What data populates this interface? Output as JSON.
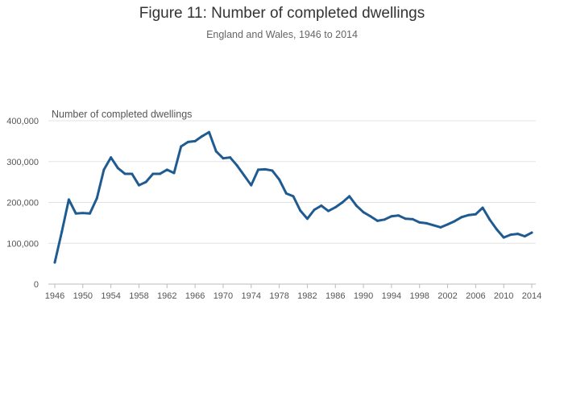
{
  "chart_data": {
    "type": "line",
    "title": "Figure 11: Number of completed dwellings",
    "subtitle": "England and Wales, 1946 to 2014",
    "xlabel": "",
    "ylabel": "Number of completed dwellings",
    "xlim": [
      1946,
      2014
    ],
    "ylim": [
      0,
      400000
    ],
    "x_ticks": [
      "1946",
      "1950",
      "1954",
      "1958",
      "1962",
      "1966",
      "1970",
      "1974",
      "1978",
      "1982",
      "1986",
      "1990",
      "1994",
      "1998",
      "2002",
      "2006",
      "2010",
      "2014"
    ],
    "y_ticks": [
      "0",
      "100,000",
      "200,000",
      "300,000",
      "400,000"
    ],
    "grid": true,
    "line_color": "#1f5b91",
    "series": [
      {
        "x": [
          1946,
          1947,
          1948,
          1949,
          1950,
          1951,
          1952,
          1953,
          1954,
          1955,
          1956,
          1957,
          1958,
          1959,
          1960,
          1961,
          1962,
          1963,
          1964,
          1965,
          1966,
          1967,
          1968,
          1969,
          1970,
          1971,
          1972,
          1973,
          1974,
          1975,
          1976,
          1977,
          1978,
          1979,
          1980,
          1981,
          1982,
          1983,
          1984,
          1985,
          1986,
          1987,
          1988,
          1989,
          1990,
          1991,
          1992,
          1993,
          1994,
          1995,
          1996,
          1997,
          1998,
          1999,
          2000,
          2001,
          2002,
          2003,
          2004,
          2005,
          2006,
          2007,
          2008,
          2009,
          2010,
          2011,
          2012,
          2013,
          2014
        ],
        "values": [
          53000,
          128000,
          207000,
          173000,
          174000,
          173000,
          210000,
          280000,
          310000,
          284000,
          270000,
          270000,
          242000,
          250000,
          270000,
          270000,
          280000,
          272000,
          337000,
          348000,
          350000,
          362000,
          372000,
          325000,
          308000,
          310000,
          290000,
          266000,
          242000,
          280000,
          281000,
          278000,
          256000,
          222000,
          215000,
          180000,
          160000,
          182000,
          192000,
          179000,
          188000,
          200000,
          215000,
          192000,
          176000,
          166000,
          155000,
          158000,
          166000,
          168000,
          160000,
          159000,
          151000,
          149000,
          144000,
          139000,
          146000,
          154000,
          164000,
          169000,
          171000,
          187000,
          158000,
          134000,
          114000,
          121000,
          123000,
          117000,
          126000
        ]
      }
    ]
  }
}
